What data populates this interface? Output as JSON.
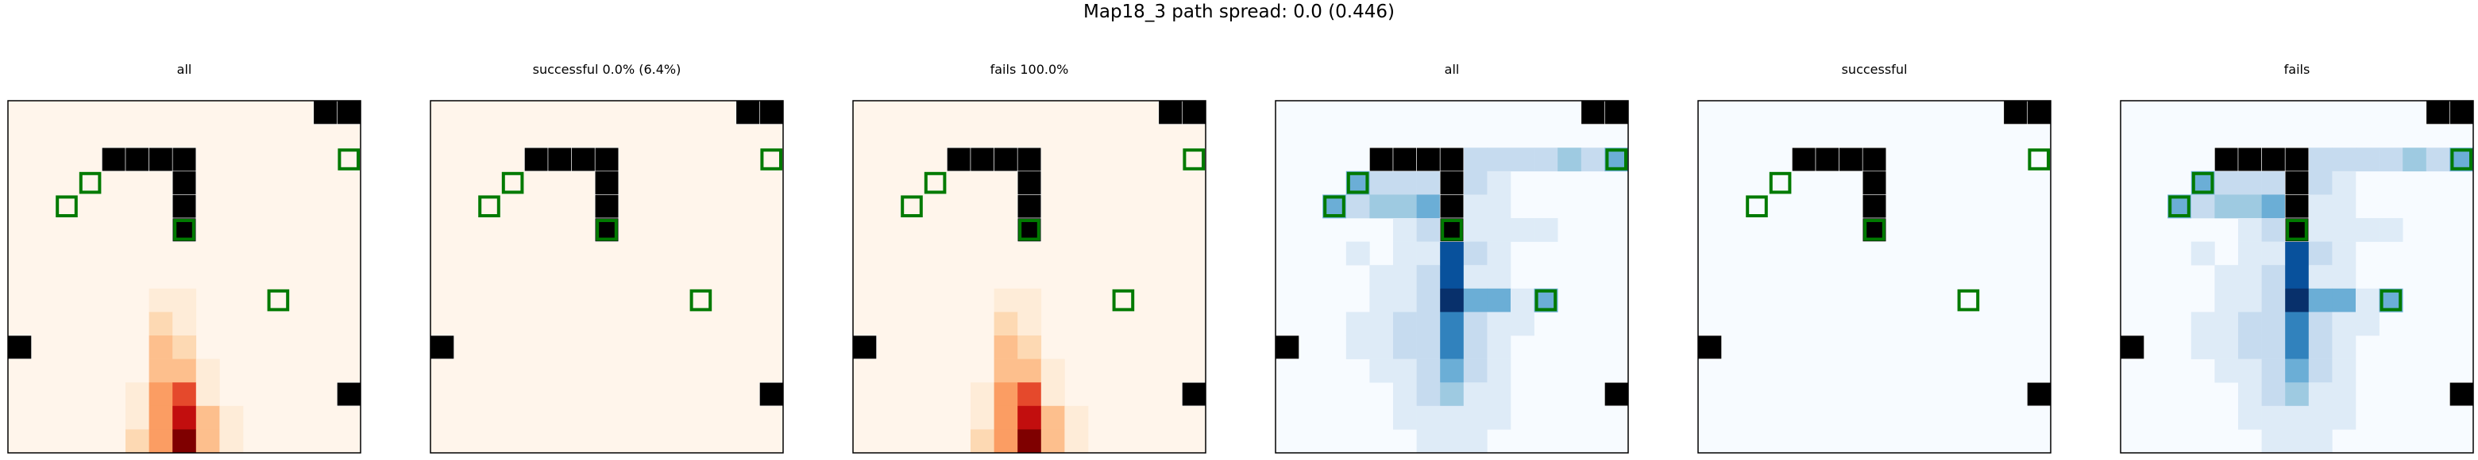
{
  "figure": {
    "title": "Map18_3 path spread: 0.0 (0.446)"
  },
  "colors": {
    "wall": "#000000",
    "goal_outline": "#007a00",
    "frame": "#000000",
    "orange_scale": [
      "#fff5eb",
      "#feecd8",
      "#fdd9b3",
      "#fdbf8d",
      "#fb9d63",
      "#e5492c",
      "#c20e0e",
      "#7f0000"
    ],
    "blue_scale": [
      "#f7fbff",
      "#deebf7",
      "#c6dbef",
      "#9ecae1",
      "#6baed6",
      "#3182bd",
      "#08519c",
      "#08306b"
    ]
  },
  "chart_data": [
    {
      "type": "heatmap",
      "title": "all",
      "colormap": "orange",
      "grid_size": 15,
      "walls": [
        [
          0,
          13
        ],
        [
          0,
          14
        ],
        [
          2,
          4
        ],
        [
          2,
          5
        ],
        [
          2,
          6
        ],
        [
          2,
          7
        ],
        [
          3,
          7
        ],
        [
          4,
          7
        ],
        [
          5,
          7
        ],
        [
          10,
          0
        ],
        [
          12,
          14
        ]
      ],
      "goals": [
        [
          2,
          14
        ],
        [
          3,
          3
        ],
        [
          4,
          2
        ],
        [
          5,
          7
        ],
        [
          8,
          11
        ]
      ],
      "cells": [
        [
          8,
          6,
          1
        ],
        [
          8,
          7,
          1
        ],
        [
          9,
          6,
          2
        ],
        [
          9,
          7,
          1
        ],
        [
          10,
          6,
          3
        ],
        [
          10,
          7,
          2
        ],
        [
          11,
          6,
          3
        ],
        [
          11,
          7,
          3
        ],
        [
          11,
          8,
          1
        ],
        [
          12,
          5,
          1
        ],
        [
          12,
          6,
          4
        ],
        [
          12,
          7,
          5
        ],
        [
          12,
          8,
          1
        ],
        [
          13,
          5,
          1
        ],
        [
          13,
          6,
          4
        ],
        [
          13,
          7,
          6
        ],
        [
          13,
          8,
          3
        ],
        [
          13,
          9,
          1
        ],
        [
          14,
          5,
          2
        ],
        [
          14,
          6,
          4
        ],
        [
          14,
          7,
          7
        ],
        [
          14,
          8,
          3
        ],
        [
          14,
          9,
          1
        ]
      ]
    },
    {
      "type": "heatmap",
      "title": "successful 0.0% (6.4%)",
      "colormap": "orange",
      "grid_size": 15,
      "walls": [
        [
          0,
          13
        ],
        [
          0,
          14
        ],
        [
          2,
          4
        ],
        [
          2,
          5
        ],
        [
          2,
          6
        ],
        [
          2,
          7
        ],
        [
          3,
          7
        ],
        [
          4,
          7
        ],
        [
          5,
          7
        ],
        [
          10,
          0
        ],
        [
          12,
          14
        ]
      ],
      "goals": [
        [
          2,
          14
        ],
        [
          3,
          3
        ],
        [
          4,
          2
        ],
        [
          5,
          7
        ],
        [
          8,
          11
        ]
      ],
      "cells": []
    },
    {
      "type": "heatmap",
      "title": "fails 100.0%",
      "colormap": "orange",
      "grid_size": 15,
      "walls": [
        [
          0,
          13
        ],
        [
          0,
          14
        ],
        [
          2,
          4
        ],
        [
          2,
          5
        ],
        [
          2,
          6
        ],
        [
          2,
          7
        ],
        [
          3,
          7
        ],
        [
          4,
          7
        ],
        [
          5,
          7
        ],
        [
          10,
          0
        ],
        [
          12,
          14
        ]
      ],
      "goals": [
        [
          2,
          14
        ],
        [
          3,
          3
        ],
        [
          4,
          2
        ],
        [
          5,
          7
        ],
        [
          8,
          11
        ]
      ],
      "cells": [
        [
          8,
          6,
          1
        ],
        [
          8,
          7,
          1
        ],
        [
          9,
          6,
          2
        ],
        [
          9,
          7,
          1
        ],
        [
          10,
          6,
          3
        ],
        [
          10,
          7,
          2
        ],
        [
          11,
          6,
          3
        ],
        [
          11,
          7,
          3
        ],
        [
          11,
          8,
          1
        ],
        [
          12,
          5,
          1
        ],
        [
          12,
          6,
          4
        ],
        [
          12,
          7,
          5
        ],
        [
          12,
          8,
          1
        ],
        [
          13,
          5,
          1
        ],
        [
          13,
          6,
          4
        ],
        [
          13,
          7,
          6
        ],
        [
          13,
          8,
          3
        ],
        [
          13,
          9,
          1
        ],
        [
          14,
          5,
          2
        ],
        [
          14,
          6,
          4
        ],
        [
          14,
          7,
          7
        ],
        [
          14,
          8,
          3
        ],
        [
          14,
          9,
          1
        ]
      ]
    },
    {
      "type": "heatmap",
      "title": "all",
      "colormap": "blue",
      "grid_size": 15,
      "walls": [
        [
          0,
          13
        ],
        [
          0,
          14
        ],
        [
          2,
          4
        ],
        [
          2,
          5
        ],
        [
          2,
          6
        ],
        [
          2,
          7
        ],
        [
          3,
          7
        ],
        [
          4,
          7
        ],
        [
          5,
          7
        ],
        [
          10,
          0
        ],
        [
          12,
          14
        ]
      ],
      "goals": [
        [
          2,
          14
        ],
        [
          3,
          3
        ],
        [
          4,
          2
        ],
        [
          5,
          7
        ],
        [
          8,
          11
        ]
      ],
      "cells": [
        [
          2,
          8,
          2
        ],
        [
          2,
          9,
          2
        ],
        [
          2,
          10,
          2
        ],
        [
          2,
          11,
          2
        ],
        [
          2,
          12,
          3
        ],
        [
          2,
          13,
          2
        ],
        [
          2,
          14,
          4
        ],
        [
          3,
          3,
          4
        ],
        [
          3,
          4,
          2
        ],
        [
          3,
          5,
          2
        ],
        [
          3,
          6,
          2
        ],
        [
          3,
          8,
          2
        ],
        [
          3,
          9,
          1
        ],
        [
          4,
          2,
          4
        ],
        [
          4,
          3,
          2
        ],
        [
          4,
          4,
          3
        ],
        [
          4,
          5,
          3
        ],
        [
          4,
          6,
          4
        ],
        [
          4,
          8,
          1
        ],
        [
          4,
          9,
          1
        ],
        [
          5,
          5,
          1
        ],
        [
          5,
          6,
          2
        ],
        [
          5,
          7,
          7
        ],
        [
          5,
          8,
          1
        ],
        [
          5,
          9,
          1
        ],
        [
          5,
          10,
          1
        ],
        [
          5,
          11,
          1
        ],
        [
          6,
          3,
          1
        ],
        [
          6,
          5,
          1
        ],
        [
          6,
          6,
          1
        ],
        [
          6,
          7,
          6
        ],
        [
          6,
          8,
          2
        ],
        [
          6,
          9,
          1
        ],
        [
          7,
          4,
          1
        ],
        [
          7,
          5,
          1
        ],
        [
          7,
          6,
          2
        ],
        [
          7,
          7,
          6
        ],
        [
          7,
          8,
          1
        ],
        [
          7,
          9,
          1
        ],
        [
          8,
          4,
          1
        ],
        [
          8,
          5,
          1
        ],
        [
          8,
          6,
          2
        ],
        [
          8,
          7,
          7
        ],
        [
          8,
          8,
          4
        ],
        [
          8,
          9,
          4
        ],
        [
          8,
          10,
          1
        ],
        [
          8,
          11,
          4
        ],
        [
          9,
          3,
          1
        ],
        [
          9,
          4,
          1
        ],
        [
          9,
          5,
          2
        ],
        [
          9,
          6,
          2
        ],
        [
          9,
          7,
          5
        ],
        [
          9,
          8,
          2
        ],
        [
          9,
          9,
          1
        ],
        [
          9,
          10,
          1
        ],
        [
          10,
          3,
          1
        ],
        [
          10,
          4,
          1
        ],
        [
          10,
          5,
          2
        ],
        [
          10,
          6,
          2
        ],
        [
          10,
          7,
          5
        ],
        [
          10,
          8,
          2
        ],
        [
          10,
          9,
          1
        ],
        [
          11,
          4,
          1
        ],
        [
          11,
          5,
          1
        ],
        [
          11,
          6,
          2
        ],
        [
          11,
          7,
          4
        ],
        [
          11,
          8,
          2
        ],
        [
          11,
          9,
          1
        ],
        [
          12,
          5,
          1
        ],
        [
          12,
          6,
          2
        ],
        [
          12,
          7,
          3
        ],
        [
          12,
          8,
          1
        ],
        [
          12,
          9,
          1
        ],
        [
          13,
          5,
          1
        ],
        [
          13,
          6,
          1
        ],
        [
          13,
          7,
          1
        ],
        [
          13,
          8,
          1
        ],
        [
          13,
          9,
          1
        ],
        [
          14,
          6,
          1
        ],
        [
          14,
          7,
          1
        ],
        [
          14,
          8,
          1
        ]
      ]
    },
    {
      "type": "heatmap",
      "title": "successful",
      "colormap": "blue",
      "grid_size": 15,
      "walls": [
        [
          0,
          13
        ],
        [
          0,
          14
        ],
        [
          2,
          4
        ],
        [
          2,
          5
        ],
        [
          2,
          6
        ],
        [
          2,
          7
        ],
        [
          3,
          7
        ],
        [
          4,
          7
        ],
        [
          5,
          7
        ],
        [
          10,
          0
        ],
        [
          12,
          14
        ]
      ],
      "goals": [
        [
          2,
          14
        ],
        [
          3,
          3
        ],
        [
          4,
          2
        ],
        [
          5,
          7
        ],
        [
          8,
          11
        ]
      ],
      "cells": []
    },
    {
      "type": "heatmap",
      "title": "fails",
      "colormap": "blue",
      "grid_size": 15,
      "walls": [
        [
          0,
          13
        ],
        [
          0,
          14
        ],
        [
          2,
          4
        ],
        [
          2,
          5
        ],
        [
          2,
          6
        ],
        [
          2,
          7
        ],
        [
          3,
          7
        ],
        [
          4,
          7
        ],
        [
          5,
          7
        ],
        [
          10,
          0
        ],
        [
          12,
          14
        ]
      ],
      "goals": [
        [
          2,
          14
        ],
        [
          3,
          3
        ],
        [
          4,
          2
        ],
        [
          5,
          7
        ],
        [
          8,
          11
        ]
      ],
      "cells": [
        [
          2,
          8,
          2
        ],
        [
          2,
          9,
          2
        ],
        [
          2,
          10,
          2
        ],
        [
          2,
          11,
          2
        ],
        [
          2,
          12,
          3
        ],
        [
          2,
          13,
          2
        ],
        [
          2,
          14,
          4
        ],
        [
          3,
          3,
          4
        ],
        [
          3,
          4,
          2
        ],
        [
          3,
          5,
          2
        ],
        [
          3,
          6,
          2
        ],
        [
          3,
          8,
          2
        ],
        [
          3,
          9,
          1
        ],
        [
          4,
          2,
          4
        ],
        [
          4,
          3,
          2
        ],
        [
          4,
          4,
          3
        ],
        [
          4,
          5,
          3
        ],
        [
          4,
          6,
          4
        ],
        [
          4,
          8,
          1
        ],
        [
          4,
          9,
          1
        ],
        [
          5,
          5,
          1
        ],
        [
          5,
          6,
          2
        ],
        [
          5,
          7,
          7
        ],
        [
          5,
          8,
          1
        ],
        [
          5,
          9,
          1
        ],
        [
          5,
          10,
          1
        ],
        [
          5,
          11,
          1
        ],
        [
          6,
          3,
          1
        ],
        [
          6,
          5,
          1
        ],
        [
          6,
          6,
          1
        ],
        [
          6,
          7,
          6
        ],
        [
          6,
          8,
          2
        ],
        [
          6,
          9,
          1
        ],
        [
          7,
          4,
          1
        ],
        [
          7,
          5,
          1
        ],
        [
          7,
          6,
          2
        ],
        [
          7,
          7,
          6
        ],
        [
          7,
          8,
          1
        ],
        [
          7,
          9,
          1
        ],
        [
          8,
          4,
          1
        ],
        [
          8,
          5,
          1
        ],
        [
          8,
          6,
          2
        ],
        [
          8,
          7,
          7
        ],
        [
          8,
          8,
          4
        ],
        [
          8,
          9,
          4
        ],
        [
          8,
          10,
          1
        ],
        [
          8,
          11,
          4
        ],
        [
          9,
          3,
          1
        ],
        [
          9,
          4,
          1
        ],
        [
          9,
          5,
          2
        ],
        [
          9,
          6,
          2
        ],
        [
          9,
          7,
          5
        ],
        [
          9,
          8,
          2
        ],
        [
          9,
          9,
          1
        ],
        [
          9,
          10,
          1
        ],
        [
          10,
          3,
          1
        ],
        [
          10,
          4,
          1
        ],
        [
          10,
          5,
          2
        ],
        [
          10,
          6,
          2
        ],
        [
          10,
          7,
          5
        ],
        [
          10,
          8,
          2
        ],
        [
          10,
          9,
          1
        ],
        [
          11,
          4,
          1
        ],
        [
          11,
          5,
          1
        ],
        [
          11,
          6,
          2
        ],
        [
          11,
          7,
          4
        ],
        [
          11,
          8,
          2
        ],
        [
          11,
          9,
          1
        ],
        [
          12,
          5,
          1
        ],
        [
          12,
          6,
          2
        ],
        [
          12,
          7,
          3
        ],
        [
          12,
          8,
          1
        ],
        [
          12,
          9,
          1
        ],
        [
          13,
          5,
          1
        ],
        [
          13,
          6,
          1
        ],
        [
          13,
          7,
          1
        ],
        [
          13,
          8,
          1
        ],
        [
          13,
          9,
          1
        ],
        [
          14,
          6,
          1
        ],
        [
          14,
          7,
          1
        ],
        [
          14,
          8,
          1
        ]
      ]
    }
  ]
}
